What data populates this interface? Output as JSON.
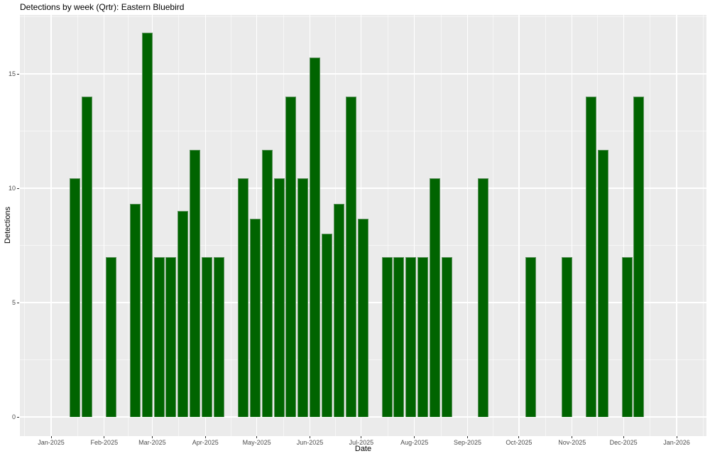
{
  "chart_data": {
    "type": "bar",
    "title": "Detections by week (Qrtr): Eastern Bluebird",
    "xlabel": "Date",
    "ylabel": "Detections",
    "legend": "none",
    "grid": "on",
    "panel_bg_color": "#EBEBEB",
    "grid_color": "#FFFFFF",
    "bar_color": "#006400",
    "bar_edge_color": "#5E935E",
    "tick_text_color": "#4D4D4D",
    "tick_mark_color": "#333333",
    "ylim": [
      -0.84,
      17.64
    ],
    "y_axis": {
      "major_ticks": [
        {
          "label": "0",
          "value": 0
        },
        {
          "label": "5",
          "value": 5
        },
        {
          "label": "10",
          "value": 10
        },
        {
          "label": "15",
          "value": 15
        }
      ],
      "minor_values": [
        2.5,
        7.5,
        12.5,
        17.5
      ]
    },
    "x_axis": {
      "ticks": [
        {
          "label": "Jan-2025",
          "date": "2025-01-01"
        },
        {
          "label": "Feb-2025",
          "date": "2025-02-01"
        },
        {
          "label": "Mar-2025",
          "date": "2025-03-01"
        },
        {
          "label": "Apr-2025",
          "date": "2025-04-01"
        },
        {
          "label": "May-2025",
          "date": "2025-05-01"
        },
        {
          "label": "Jun-2025",
          "date": "2025-06-01"
        },
        {
          "label": "Jul-2025",
          "date": "2025-07-01"
        },
        {
          "label": "Aug-2025",
          "date": "2025-08-01"
        },
        {
          "label": "Sep-2025",
          "date": "2025-09-01"
        },
        {
          "label": "Oct-2025",
          "date": "2025-10-01"
        },
        {
          "label": "Nov-2025",
          "date": "2025-11-01"
        },
        {
          "label": "Dec-2025",
          "date": "2025-12-01"
        },
        {
          "label": "Jan-2026",
          "date": "2026-01-01"
        }
      ]
    },
    "bars": [
      {
        "week": "2025-01-15",
        "value": 10.43
      },
      {
        "week": "2025-01-22",
        "value": 14
      },
      {
        "week": "2025-02-05",
        "value": 7
      },
      {
        "week": "2025-02-19",
        "value": 9.33
      },
      {
        "week": "2025-02-26",
        "value": 16.8
      },
      {
        "week": "2025-03-05",
        "value": 7
      },
      {
        "week": "2025-03-12",
        "value": 7
      },
      {
        "week": "2025-03-19",
        "value": 9
      },
      {
        "week": "2025-03-26",
        "value": 11.67
      },
      {
        "week": "2025-04-02",
        "value": 7
      },
      {
        "week": "2025-04-09",
        "value": 7
      },
      {
        "week": "2025-04-23",
        "value": 10.43
      },
      {
        "week": "2025-04-30",
        "value": 8.67
      },
      {
        "week": "2025-05-07",
        "value": 11.67
      },
      {
        "week": "2025-05-14",
        "value": 10.43
      },
      {
        "week": "2025-05-21",
        "value": 14
      },
      {
        "week": "2025-05-28",
        "value": 10.43
      },
      {
        "week": "2025-06-04",
        "value": 15.7
      },
      {
        "week": "2025-06-11",
        "value": 8
      },
      {
        "week": "2025-06-18",
        "value": 9.33
      },
      {
        "week": "2025-06-25",
        "value": 14
      },
      {
        "week": "2025-07-02",
        "value": 8.67
      },
      {
        "week": "2025-07-16",
        "value": 7
      },
      {
        "week": "2025-07-23",
        "value": 7
      },
      {
        "week": "2025-07-30",
        "value": 7
      },
      {
        "week": "2025-08-06",
        "value": 7
      },
      {
        "week": "2025-08-13",
        "value": 10.43
      },
      {
        "week": "2025-08-20",
        "value": 7
      },
      {
        "week": "2025-09-10",
        "value": 10.43
      },
      {
        "week": "2025-10-08",
        "value": 7
      },
      {
        "week": "2025-10-29",
        "value": 7
      },
      {
        "week": "2025-11-12",
        "value": 14
      },
      {
        "week": "2025-11-19",
        "value": 11.67
      },
      {
        "week": "2025-12-03",
        "value": 7
      },
      {
        "week": "2025-12-10",
        "value": 14
      }
    ]
  }
}
